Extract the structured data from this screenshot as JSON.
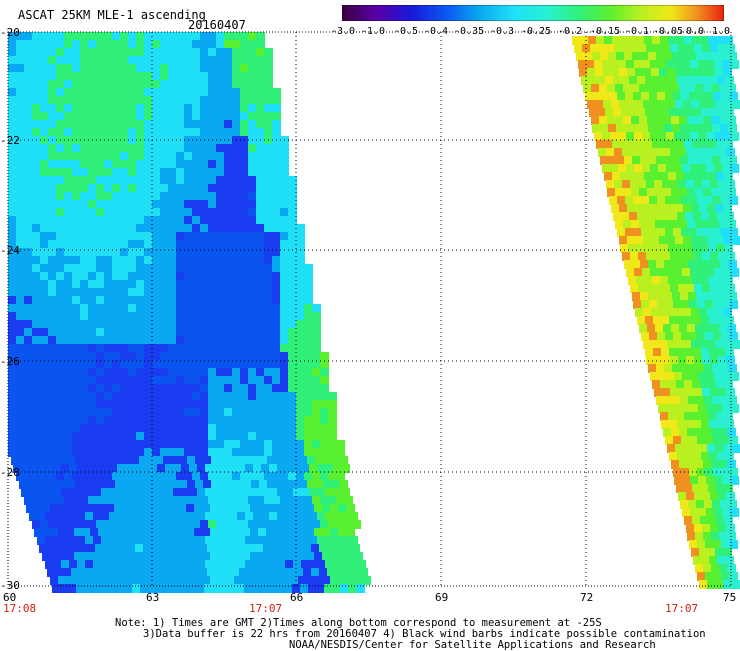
{
  "header": {
    "title": "ASCAT 25KM MLE-1 ascending",
    "date": "20160407"
  },
  "colorbar": {
    "ticks": [
      "-3.0",
      "-1.0",
      "-0.5",
      "-0.4",
      "-0.35",
      "-0.3",
      "-0.25",
      "-0.2",
      "-0.15",
      "-0.1",
      "-0.05",
      "0.0",
      "1.0"
    ],
    "colors": [
      "#3a0040",
      "#5a00a8",
      "#1a18d8",
      "#0a55f0",
      "#0aa8f0",
      "#20e0f8",
      "#28f0d0",
      "#30f07a",
      "#58f030",
      "#b8f020",
      "#f0e818",
      "#f09020",
      "#e82010"
    ]
  },
  "axes": {
    "lat_labels": [
      "-20",
      "-22",
      "-24",
      "-26",
      "-28",
      "-30"
    ],
    "lon_labels": [
      "60",
      "63",
      "66",
      "69",
      "72",
      "75"
    ],
    "time_labels": [
      "17:08",
      "17:07",
      "17:07"
    ]
  },
  "swaths": {
    "left": {
      "palette": [
        "#0a55f0",
        "#1a3cf0",
        "#0aa8f0",
        "#20e0f8",
        "#30f07a",
        "#58f030"
      ]
    },
    "right": {
      "palette": [
        "#20e0f8",
        "#28f0d0",
        "#30f07a",
        "#58f030",
        "#b8f020",
        "#f0e818",
        "#f09020"
      ]
    }
  },
  "footer": {
    "note_line1": "Note: 1) Times are GMT 2)Times along bottom correspond to measurement at -25S",
    "note_line2": "3)Data buffer is 22 hrs from 20160407 4) Black wind barbs indicate possible contamination",
    "note_line3": "NOAA/NESDIS/Center for Satellite Applications and Research"
  }
}
